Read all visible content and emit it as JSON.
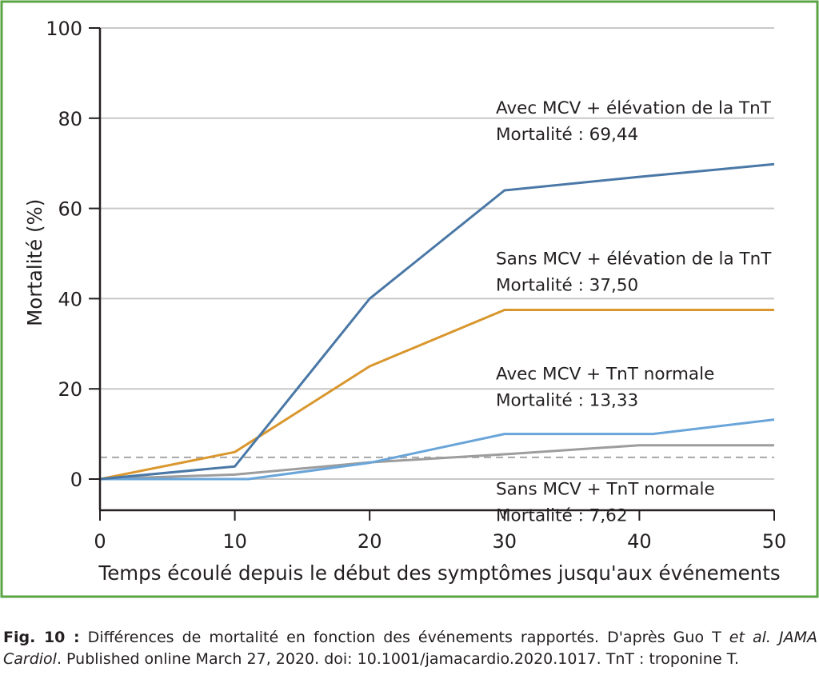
{
  "chart_data": {
    "type": "line",
    "xlabel": "Temps écoulé depuis le début des symptômes jusqu'aux événements",
    "ylabel": "Mortalité (%)",
    "xlim": [
      0,
      50
    ],
    "ylim": [
      -7,
      100
    ],
    "x_ticks": [
      "0",
      "10",
      "20",
      "30",
      "40",
      "50"
    ],
    "y_ticks": [
      "0",
      "20",
      "40",
      "60",
      "80",
      "100"
    ],
    "grid": true,
    "reference_line": {
      "y": 4.8,
      "style": "dashed"
    },
    "series": [
      {
        "name": "Avec MCV + élévation de la TnT",
        "mortality_label": "Mortalité : 69,44",
        "color": "#4a78a6",
        "points": [
          [
            0,
            0
          ],
          [
            10,
            2.8
          ],
          [
            20,
            40
          ],
          [
            30,
            64
          ],
          [
            40,
            67
          ],
          [
            50,
            69.8
          ]
        ]
      },
      {
        "name": "Sans MCV + élévation de la TnT",
        "mortality_label": "Mortalité : 37,50",
        "color": "#d9972e",
        "points": [
          [
            0,
            0
          ],
          [
            10,
            6
          ],
          [
            20,
            25
          ],
          [
            30,
            37.5
          ],
          [
            40,
            37.5
          ],
          [
            50,
            37.5
          ]
        ]
      },
      {
        "name": "Avec MCV + TnT normale",
        "mortality_label": "Mortalité : 13,33",
        "color": "#6aa5d9",
        "points": [
          [
            0,
            0
          ],
          [
            11,
            0
          ],
          [
            20,
            3.6
          ],
          [
            30,
            10
          ],
          [
            41,
            10
          ],
          [
            50,
            13.2
          ]
        ]
      },
      {
        "name": "Sans MCV + TnT normale",
        "mortality_label": "Mortalité : 7,62",
        "color": "#9d9d9d",
        "points": [
          [
            0,
            0
          ],
          [
            10,
            1
          ],
          [
            20,
            3.7
          ],
          [
            30,
            5.5
          ],
          [
            40,
            7.5
          ],
          [
            50,
            7.5
          ]
        ]
      }
    ],
    "annotations_order": [
      "Avec MCV + élévation de la TnT",
      "Sans MCV + élévation de la TnT",
      "Avec MCV + TnT normale",
      "Sans MCV + TnT normale"
    ]
  },
  "colors": {
    "frame": "#5aa443",
    "grid": "#c8c8c8",
    "dashed": "#a8a8a8",
    "axis": "#231f20"
  },
  "caption": {
    "fig_label": "Fig. 10 :",
    "text_1": " Différences de mortalité en fonction des événements rapportés. D'après Guo T ",
    "et_al": "et al.",
    "journal": "JAMA Cardiol",
    "text_2": ". Published online March 27, 2020. doi: 10.1001/jamacardio.2020.1017. TnT : troponine T."
  }
}
